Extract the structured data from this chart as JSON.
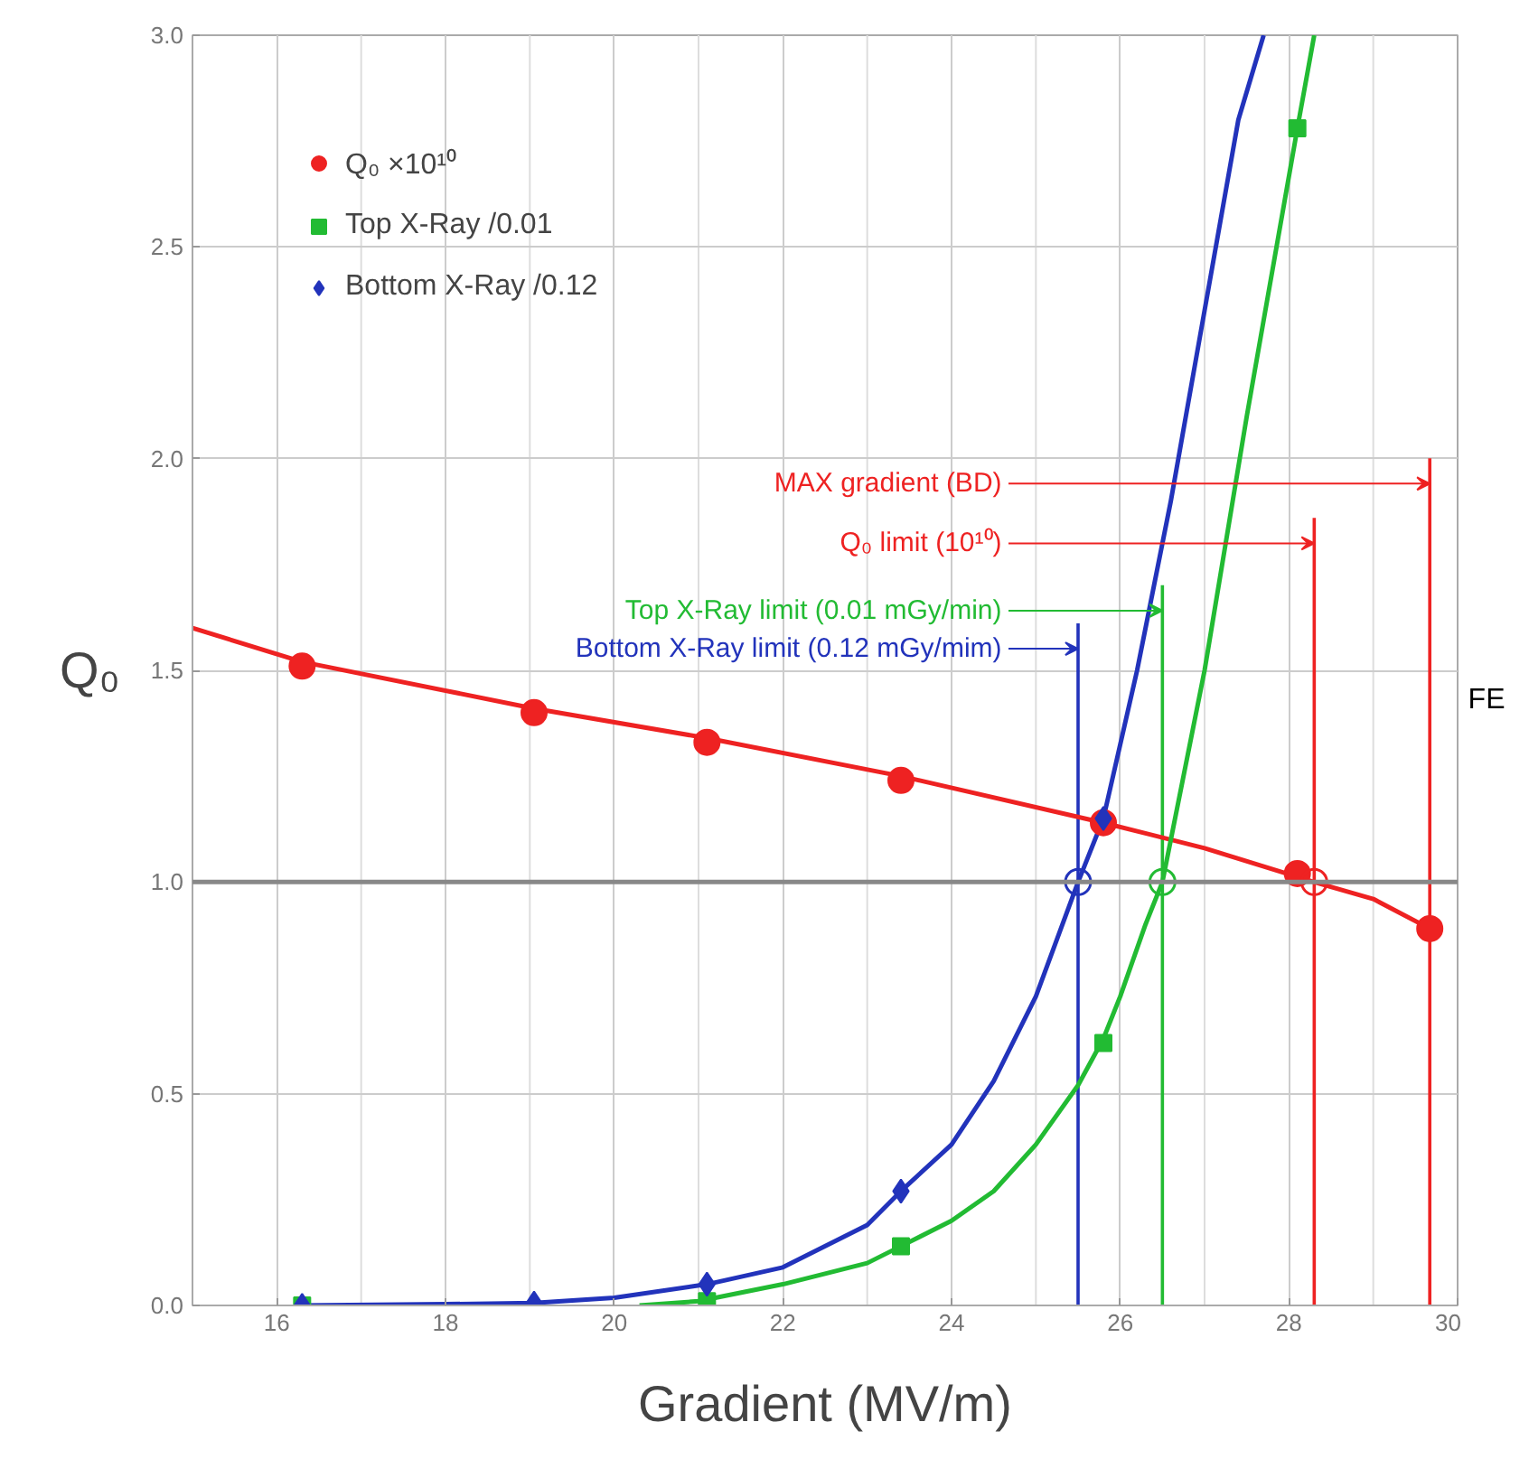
{
  "chart_data": {
    "type": "scatter",
    "xlabel": "Gradient (MV/m)",
    "ylabel": "Q₀",
    "xlim": [
      15,
      30
    ],
    "xticks": [
      16,
      18,
      20,
      22,
      24,
      26,
      28,
      30
    ],
    "ylim": [
      0,
      3
    ],
    "yticks": [
      {
        "value": 0,
        "label": "0.0"
      },
      {
        "value": 0.5,
        "label": "0.5"
      },
      {
        "value": 1,
        "label": "1.0"
      },
      {
        "value": 1.5,
        "label": "1.5"
      },
      {
        "value": 2,
        "label": "2.0"
      },
      {
        "value": 2.5,
        "label": "2.5"
      },
      {
        "value": 3,
        "label": "3.0"
      }
    ],
    "grid": true,
    "legend": "top left",
    "series": [
      {
        "type": "line",
        "color": "#ee2222",
        "x": [
          15,
          16.3,
          19.05,
          21.1,
          23.4,
          25.8,
          27,
          28.3,
          29,
          29.67
        ],
        "values": [
          1.6,
          1.52,
          1.41,
          1.34,
          1.25,
          1.14,
          1.08,
          1.0,
          0.96,
          0.89
        ]
      },
      {
        "type": "line",
        "color": "#22bb33",
        "x": [
          20.3,
          21,
          22,
          23,
          23.4,
          24,
          24.5,
          25,
          25.5,
          25.8,
          26,
          26.3,
          26.5,
          27,
          27.5,
          28.1,
          28.3
        ],
        "values": [
          0,
          0.01,
          0.05,
          0.1,
          0.14,
          0.2,
          0.27,
          0.38,
          0.52,
          0.63,
          0.73,
          0.9,
          1.0,
          1.5,
          2.1,
          2.78,
          3.0
        ]
      },
      {
        "type": "line",
        "color": "#2233bb",
        "x": [
          16.3,
          18,
          19.05,
          20,
          21.1,
          22,
          23,
          23.4,
          24,
          24.5,
          25,
          25.5,
          25.8,
          26.2,
          26.6,
          27,
          27.4,
          27.7
        ],
        "values": [
          0,
          0.003,
          0.006,
          0.018,
          0.05,
          0.09,
          0.19,
          0.27,
          0.38,
          0.53,
          0.73,
          1.0,
          1.15,
          1.5,
          1.9,
          2.35,
          2.8,
          3.0
        ]
      },
      {
        "name": "Q₀ ×10¹⁰",
        "marker": "circle",
        "color": "#ee2222",
        "x": [
          16.3,
          19.05,
          21.1,
          23.4,
          25.8,
          28.1,
          29.67
        ],
        "values": [
          1.51,
          1.4,
          1.33,
          1.24,
          1.14,
          1.02,
          0.89
        ]
      },
      {
        "name": "Top X-Ray /0.01",
        "marker": "square",
        "color": "#22bb33",
        "x": [
          16.3,
          21.1,
          23.4,
          25.8,
          28.1
        ],
        "values": [
          0,
          0.01,
          0.14,
          0.62,
          2.78
        ]
      },
      {
        "name": "Bottom X-Ray /0.12",
        "marker": "diamond",
        "color": "#2233bb",
        "x": [
          16.3,
          19.05,
          21.1,
          23.4,
          25.8
        ],
        "values": [
          0,
          0.005,
          0.05,
          0.27,
          1.15
        ]
      },
      {
        "marker": "circle",
        "colors": [
          "#2233bb",
          "#22bb33",
          "#ee2222"
        ],
        "x": [
          25.5,
          26.5,
          28.3
        ],
        "values": [
          1,
          1,
          1
        ]
      }
    ],
    "ref_lines": [
      {
        "axis": "y",
        "value": 1,
        "color": "#888888"
      },
      {
        "axis": "x",
        "value": 29.67,
        "label": "MAX gradient (BD)",
        "color": "#ee2222"
      },
      {
        "axis": "x",
        "value": 28.3,
        "label": "Q₀ limit (10¹⁰)",
        "color": "#ee2222"
      },
      {
        "axis": "x",
        "value": 26.5,
        "label": "Top X-Ray limit (0.01 mGy/min)",
        "color": "#22bb33"
      },
      {
        "axis": "x",
        "value": 25.5,
        "label": "Bottom X-Ray limit (0.12 mGy/mim)",
        "color": "#2233bb"
      }
    ],
    "annotations": [
      "FE"
    ]
  }
}
